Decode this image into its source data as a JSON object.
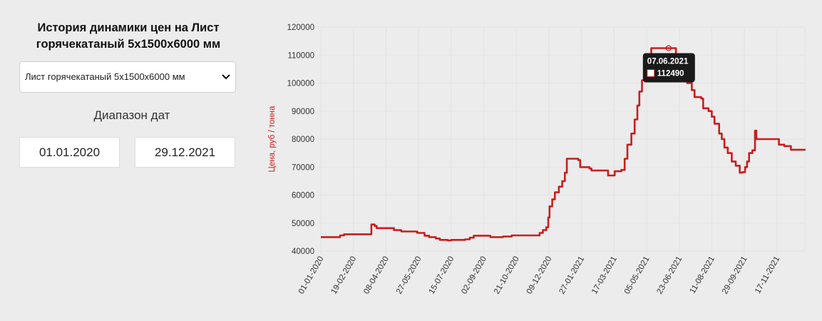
{
  "panel": {
    "title_line1": "История динамики цен на Лист",
    "title_line2": "горячекатаный 5х1500х6000 мм",
    "product_select": {
      "selected": "Лист горячекатаный 5х1500х6000 мм"
    },
    "date_range_label": "Диапазон дат",
    "date_from": "01.01.2020",
    "date_to": "29.12.2021"
  },
  "colors": {
    "series": "#c81e1e",
    "grid": "#e3e3e3",
    "tooltip_bg": "#1a1a1a"
  },
  "chart_data": {
    "type": "line",
    "ylabel": "Цена, руб / тонна",
    "ylim": [
      40000,
      120000
    ],
    "yticks": [
      40000,
      50000,
      60000,
      70000,
      80000,
      90000,
      100000,
      110000,
      120000
    ],
    "xlim": [
      "2020-01-01",
      "2021-12-29"
    ],
    "xticks": [
      "01-01-2020",
      "19-02-2020",
      "08-04-2020",
      "27-05-2020",
      "15-07-2020",
      "02-09-2020",
      "21-10-2020",
      "09-12-2020",
      "27-01-2021",
      "17-03-2021",
      "05-05-2021",
      "23-06-2021",
      "11-08-2021",
      "29-09-2021",
      "17-11-2021"
    ],
    "grid": true,
    "series": [
      {
        "points": [
          [
            "2020-01-01",
            45000
          ],
          [
            "2020-01-28",
            45000
          ],
          [
            "2020-01-30",
            45600
          ],
          [
            "2020-02-05",
            46000
          ],
          [
            "2020-03-15",
            46000
          ],
          [
            "2020-03-17",
            49500
          ],
          [
            "2020-03-22",
            49000
          ],
          [
            "2020-03-25",
            48200
          ],
          [
            "2020-04-20",
            47500
          ],
          [
            "2020-05-01",
            47000
          ],
          [
            "2020-05-25",
            46500
          ],
          [
            "2020-06-05",
            45500
          ],
          [
            "2020-06-12",
            45000
          ],
          [
            "2020-06-22",
            44500
          ],
          [
            "2020-06-28",
            44000
          ],
          [
            "2020-07-10",
            43800
          ],
          [
            "2020-07-15",
            44000
          ],
          [
            "2020-08-05",
            44200
          ],
          [
            "2020-08-12",
            44800
          ],
          [
            "2020-08-18",
            45500
          ],
          [
            "2020-09-10",
            45500
          ],
          [
            "2020-09-12",
            45000
          ],
          [
            "2020-10-01",
            45200
          ],
          [
            "2020-10-14",
            45600
          ],
          [
            "2020-11-20",
            45600
          ],
          [
            "2020-11-25",
            46500
          ],
          [
            "2020-11-30",
            47500
          ],
          [
            "2020-12-05",
            48500
          ],
          [
            "2020-12-08",
            52000
          ],
          [
            "2020-12-10",
            56000
          ],
          [
            "2020-12-14",
            58500
          ],
          [
            "2020-12-18",
            61000
          ],
          [
            "2020-12-24",
            63000
          ],
          [
            "2020-12-29",
            65000
          ],
          [
            "2021-01-02",
            68000
          ],
          [
            "2021-01-05",
            73000
          ],
          [
            "2021-01-22",
            72500
          ],
          [
            "2021-01-25",
            70000
          ],
          [
            "2021-02-08",
            69500
          ],
          [
            "2021-02-11",
            68800
          ],
          [
            "2021-03-05",
            68800
          ],
          [
            "2021-03-08",
            67000
          ],
          [
            "2021-03-15",
            67000
          ],
          [
            "2021-03-18",
            68500
          ],
          [
            "2021-03-28",
            69000
          ],
          [
            "2021-04-02",
            73000
          ],
          [
            "2021-04-06",
            78000
          ],
          [
            "2021-04-12",
            82000
          ],
          [
            "2021-04-17",
            87000
          ],
          [
            "2021-04-21",
            92000
          ],
          [
            "2021-04-24",
            97000
          ],
          [
            "2021-04-28",
            101000
          ],
          [
            "2021-05-03",
            106000
          ],
          [
            "2021-05-07",
            109000
          ],
          [
            "2021-05-12",
            112490
          ],
          [
            "2021-06-07",
            112490
          ],
          [
            "2021-06-14",
            112490
          ],
          [
            "2021-06-18",
            107000
          ],
          [
            "2021-06-22",
            104000
          ],
          [
            "2021-06-28",
            102000
          ],
          [
            "2021-07-05",
            100000
          ],
          [
            "2021-07-12",
            97500
          ],
          [
            "2021-07-16",
            95000
          ],
          [
            "2021-07-26",
            94500
          ],
          [
            "2021-07-29",
            91000
          ],
          [
            "2021-08-06",
            90000
          ],
          [
            "2021-08-11",
            88000
          ],
          [
            "2021-08-15",
            85500
          ],
          [
            "2021-08-22",
            82000
          ],
          [
            "2021-08-26",
            80000
          ],
          [
            "2021-08-30",
            77000
          ],
          [
            "2021-09-04",
            75000
          ],
          [
            "2021-09-10",
            72000
          ],
          [
            "2021-09-16",
            70500
          ],
          [
            "2021-09-22",
            68000
          ],
          [
            "2021-09-26",
            68200
          ],
          [
            "2021-09-30",
            70000
          ],
          [
            "2021-10-03",
            72000
          ],
          [
            "2021-10-06",
            75000
          ],
          [
            "2021-10-11",
            76000
          ],
          [
            "2021-10-15",
            83000
          ],
          [
            "2021-10-17",
            80000
          ],
          [
            "2021-11-17",
            80000
          ],
          [
            "2021-11-20",
            78000
          ],
          [
            "2021-11-28",
            77500
          ],
          [
            "2021-12-08",
            76200
          ],
          [
            "2021-12-29",
            76000
          ]
        ]
      }
    ],
    "tooltip": {
      "date": "07.06.2021",
      "value": "112490",
      "at": [
        "2021-06-07",
        112490
      ]
    }
  }
}
